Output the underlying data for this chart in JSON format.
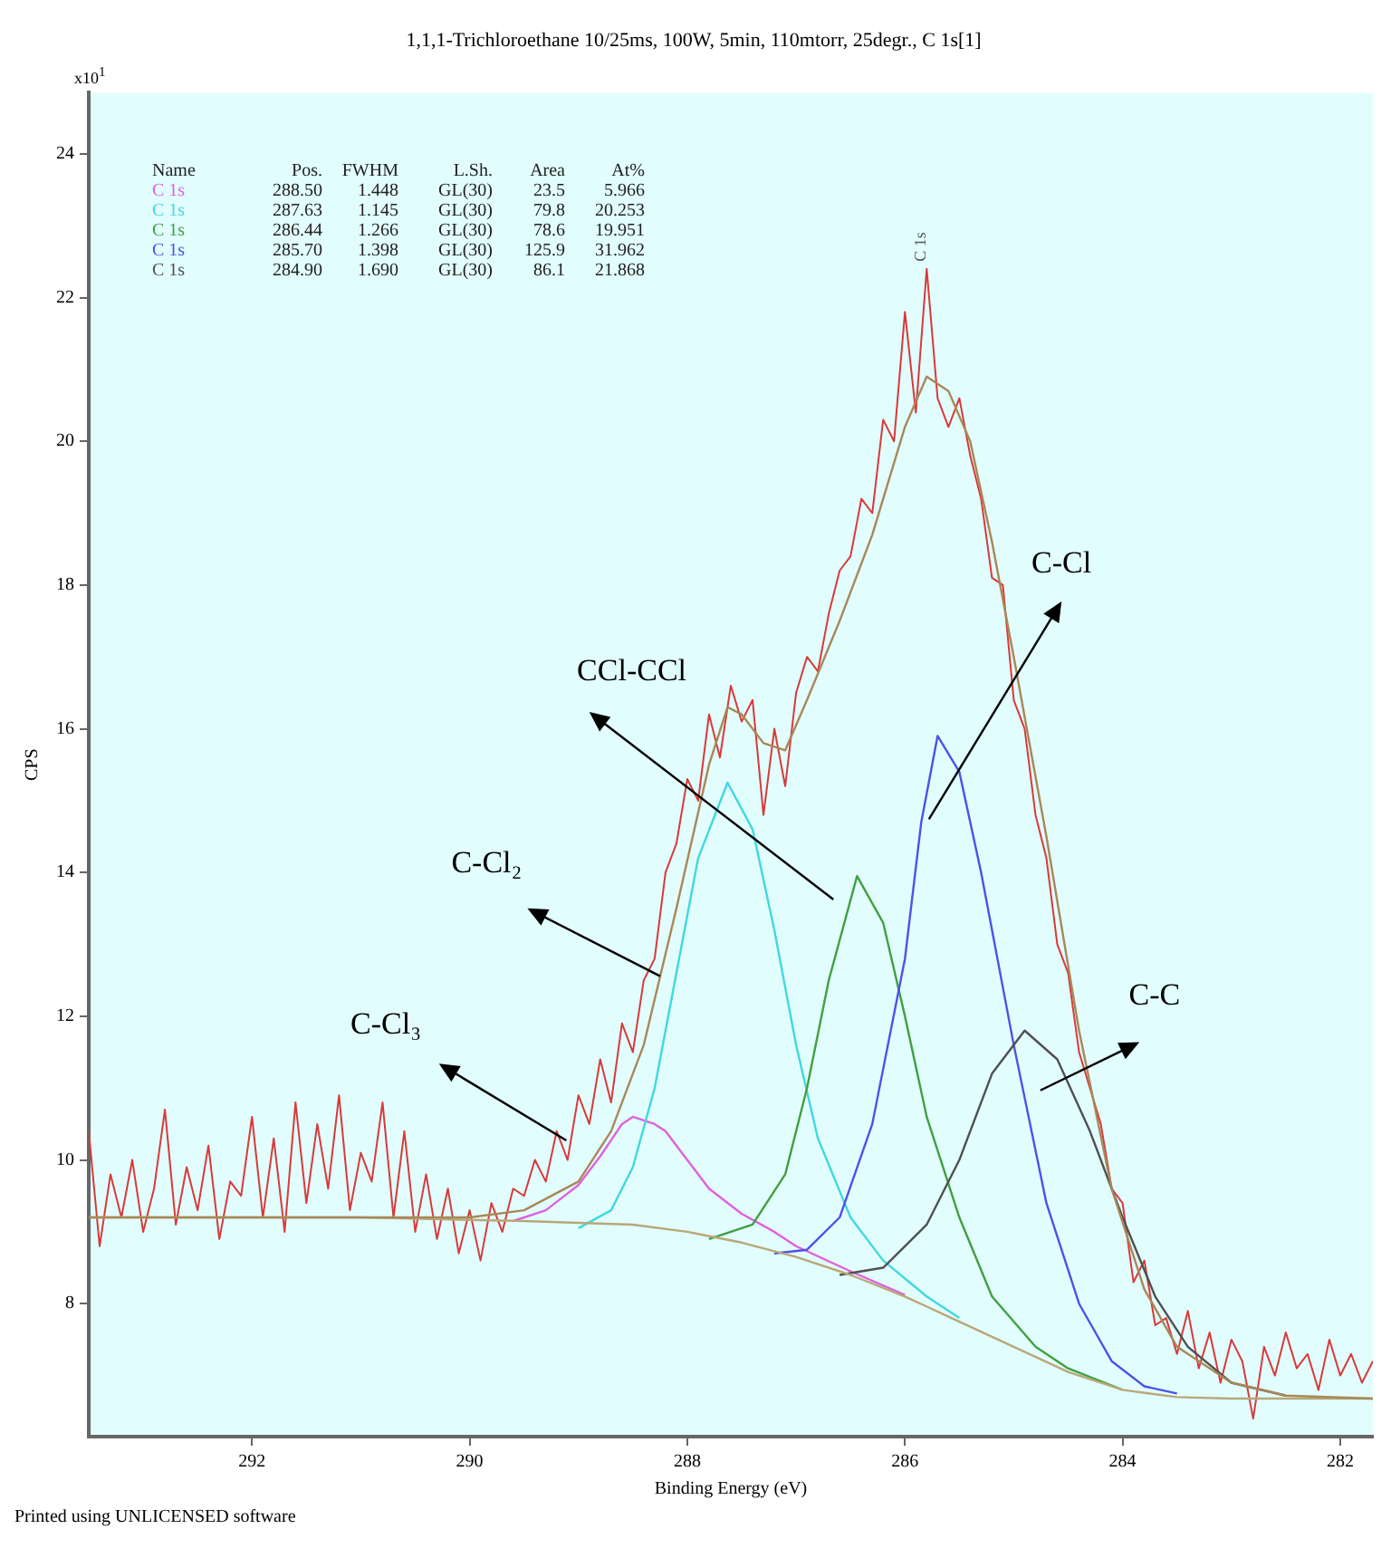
{
  "chart_data": {
    "type": "line",
    "title": "1,1,1-Trichloroethane 10/25ms, 100W, 5min, 110mtorr, 25degr., C 1s[1]",
    "xlabel": "Binding Energy (eV)",
    "ylabel": "CPS",
    "xlim": [
      293.5,
      281.7
    ],
    "xticks": [
      292,
      290,
      288,
      286,
      284,
      282
    ],
    "ylim": [
      6.15,
      24.85
    ],
    "yticks": [
      8,
      10,
      12,
      14,
      16,
      18,
      20,
      22,
      24
    ],
    "grid": false,
    "legend": "top left",
    "marker": "none",
    "line_style": "solid",
    "series": [
      {
        "color": "#d83a3a",
        "x": [
          293.5,
          293.4,
          293.3,
          293.2,
          293.1,
          293.0,
          292.9,
          292.8,
          292.7,
          292.6,
          292.5,
          292.4,
          292.3,
          292.2,
          292.1,
          292.0,
          291.9,
          291.8,
          291.7,
          291.6,
          291.5,
          291.4,
          291.3,
          291.2,
          291.1,
          291.0,
          290.9,
          290.8,
          290.7,
          290.6,
          290.5,
          290.4,
          290.3,
          290.2,
          290.1,
          290.0,
          289.9,
          289.8,
          289.7,
          289.6,
          289.5,
          289.4,
          289.3,
          289.2,
          289.1,
          289.0,
          288.9,
          288.8,
          288.7,
          288.6,
          288.5,
          288.4,
          288.3,
          288.2,
          288.1,
          288.0,
          287.9,
          287.8,
          287.7,
          287.6,
          287.5,
          287.4,
          287.3,
          287.2,
          287.1,
          287.0,
          286.9,
          286.8,
          286.7,
          286.6,
          286.5,
          286.4,
          286.3,
          286.2,
          286.1,
          286.0,
          285.9,
          285.8,
          285.7,
          285.6,
          285.5,
          285.4,
          285.3,
          285.2,
          285.1,
          285.0,
          284.9,
          284.8,
          284.7,
          284.6,
          284.5,
          284.4,
          284.3,
          284.2,
          284.1,
          284.0,
          283.9,
          283.8,
          283.7,
          283.6,
          283.5,
          283.4,
          283.3,
          283.2,
          283.1,
          283.0,
          282.9,
          282.8,
          282.7,
          282.6,
          282.5,
          282.4,
          282.3,
          282.2,
          282.1,
          282.0,
          281.9,
          281.8,
          281.7
        ],
        "values": [
          10.4,
          8.8,
          9.8,
          9.2,
          10.0,
          9.0,
          9.6,
          10.7,
          9.1,
          9.9,
          9.3,
          10.2,
          8.9,
          9.7,
          9.5,
          10.6,
          9.2,
          10.3,
          9.0,
          10.8,
          9.4,
          10.5,
          9.6,
          10.9,
          9.3,
          10.1,
          9.7,
          10.8,
          9.2,
          10.4,
          9.0,
          9.8,
          8.9,
          9.6,
          8.7,
          9.3,
          8.6,
          9.4,
          9.0,
          9.6,
          9.5,
          10.0,
          9.7,
          10.4,
          10.0,
          10.9,
          10.5,
          11.4,
          10.8,
          11.9,
          11.5,
          12.5,
          12.8,
          14.0,
          14.4,
          15.3,
          15.0,
          16.2,
          15.6,
          16.6,
          16.1,
          16.4,
          14.8,
          16.0,
          15.2,
          16.5,
          17.0,
          16.8,
          17.6,
          18.2,
          18.4,
          19.2,
          19.0,
          20.3,
          20.0,
          21.8,
          20.4,
          22.4,
          20.6,
          20.2,
          20.6,
          19.8,
          19.2,
          18.1,
          18.0,
          16.4,
          16.0,
          14.8,
          14.2,
          13.0,
          12.6,
          11.5,
          11.0,
          10.5,
          9.6,
          9.4,
          8.3,
          8.6,
          7.7,
          7.8,
          7.3,
          7.9,
          7.1,
          7.6,
          6.9,
          7.5,
          7.2,
          6.4,
          7.4,
          7.0,
          7.6,
          7.1,
          7.3,
          6.8,
          7.5,
          7.0,
          7.3,
          6.9,
          7.2
        ]
      },
      {
        "name": "C 1s",
        "color": "#e060e0",
        "x": [
          289.6,
          289.3,
          289.0,
          288.8,
          288.6,
          288.5,
          288.3,
          288.2,
          288.0,
          287.8,
          287.5,
          287.2,
          287.0,
          286.5,
          286.0
        ],
        "values": [
          9.15,
          9.3,
          9.65,
          10.05,
          10.5,
          10.6,
          10.5,
          10.4,
          10.0,
          9.6,
          9.25,
          9.0,
          8.8,
          8.45,
          8.12
        ]
      },
      {
        "name": "C 1s",
        "color": "#40d8e0",
        "x": [
          289.0,
          288.7,
          288.5,
          288.3,
          288.1,
          287.9,
          287.63,
          287.4,
          287.2,
          287.0,
          286.8,
          286.5,
          286.2,
          285.8,
          285.5
        ],
        "values": [
          9.05,
          9.3,
          9.9,
          11.0,
          12.6,
          14.2,
          15.25,
          14.6,
          13.2,
          11.6,
          10.3,
          9.2,
          8.6,
          8.1,
          7.8
        ]
      },
      {
        "name": "C 1s",
        "color": "#40a040",
        "x": [
          287.8,
          287.4,
          287.1,
          286.9,
          286.7,
          286.44,
          286.2,
          286.0,
          285.8,
          285.5,
          285.2,
          284.8,
          284.5,
          284.0
        ],
        "values": [
          8.9,
          9.1,
          9.8,
          11.0,
          12.5,
          13.95,
          13.3,
          12.0,
          10.6,
          9.2,
          8.1,
          7.4,
          7.1,
          6.8
        ]
      },
      {
        "name": "C 1s",
        "color": "#5050e8",
        "x": [
          287.2,
          286.9,
          286.6,
          286.3,
          286.0,
          285.85,
          285.7,
          285.5,
          285.3,
          285.0,
          284.7,
          284.4,
          284.1,
          283.8,
          283.5
        ],
        "values": [
          8.7,
          8.75,
          9.2,
          10.5,
          12.8,
          14.7,
          15.9,
          15.4,
          14.0,
          11.6,
          9.4,
          8.0,
          7.2,
          6.85,
          6.75
        ]
      },
      {
        "name": "C 1s",
        "color": "#505050",
        "x": [
          286.6,
          286.2,
          285.8,
          285.5,
          285.2,
          284.9,
          284.6,
          284.3,
          284.0,
          283.7,
          283.4,
          283.0,
          282.5
        ],
        "values": [
          8.4,
          8.5,
          9.1,
          10.0,
          11.2,
          11.8,
          11.4,
          10.4,
          9.2,
          8.1,
          7.4,
          6.9,
          6.72
        ]
      },
      {
        "color": "#b8a878",
        "x": [
          293.5,
          291.0,
          289.5,
          288.5,
          288.0,
          287.5,
          287.0,
          286.5,
          286.0,
          285.5,
          285.0,
          284.5,
          284.0,
          283.5,
          283.0,
          281.7
        ],
        "values": [
          9.2,
          9.2,
          9.15,
          9.1,
          9.0,
          8.85,
          8.65,
          8.4,
          8.1,
          7.75,
          7.4,
          7.05,
          6.8,
          6.7,
          6.68,
          6.68
        ]
      },
      {
        "color": "#a88858",
        "x": [
          293.5,
          290.0,
          289.5,
          289.0,
          288.7,
          288.4,
          288.1,
          287.8,
          287.63,
          287.5,
          287.3,
          287.1,
          286.9,
          286.6,
          286.3,
          286.0,
          285.8,
          285.6,
          285.4,
          285.2,
          285.0,
          284.7,
          284.4,
          284.1,
          283.8,
          283.5,
          283.0,
          282.5,
          281.7
        ],
        "values": [
          9.2,
          9.2,
          9.3,
          9.7,
          10.4,
          11.6,
          13.5,
          15.5,
          16.3,
          16.2,
          15.8,
          15.7,
          16.4,
          17.5,
          18.7,
          20.2,
          20.9,
          20.7,
          20.0,
          18.6,
          17.0,
          14.5,
          11.8,
          9.6,
          8.2,
          7.4,
          6.9,
          6.72,
          6.68
        ]
      }
    ],
    "annotations": [
      "Name Pos. FWHM L.Sh. Area At%",
      "288.50 1.448 GL(30) 23.5 5.966",
      "287.63 1.145 GL(30) 79.8 20.253",
      "286.44 1.266 GL(30) 78.6 19.951",
      "285.70 1.398 GL(30) 125.9 31.962",
      "284.90 1.690 GL(30) 86.1 21.868",
      "x10$^{1}$",
      "Printed using UNLICENSED software",
      {
        "text": "C 1s",
        "x": 285.85,
        "y": 22.5
      },
      "C-Cl₃",
      "C-Cl₂",
      "CCl-CCl",
      "C-Cl",
      "C-C"
    ]
  }
}
